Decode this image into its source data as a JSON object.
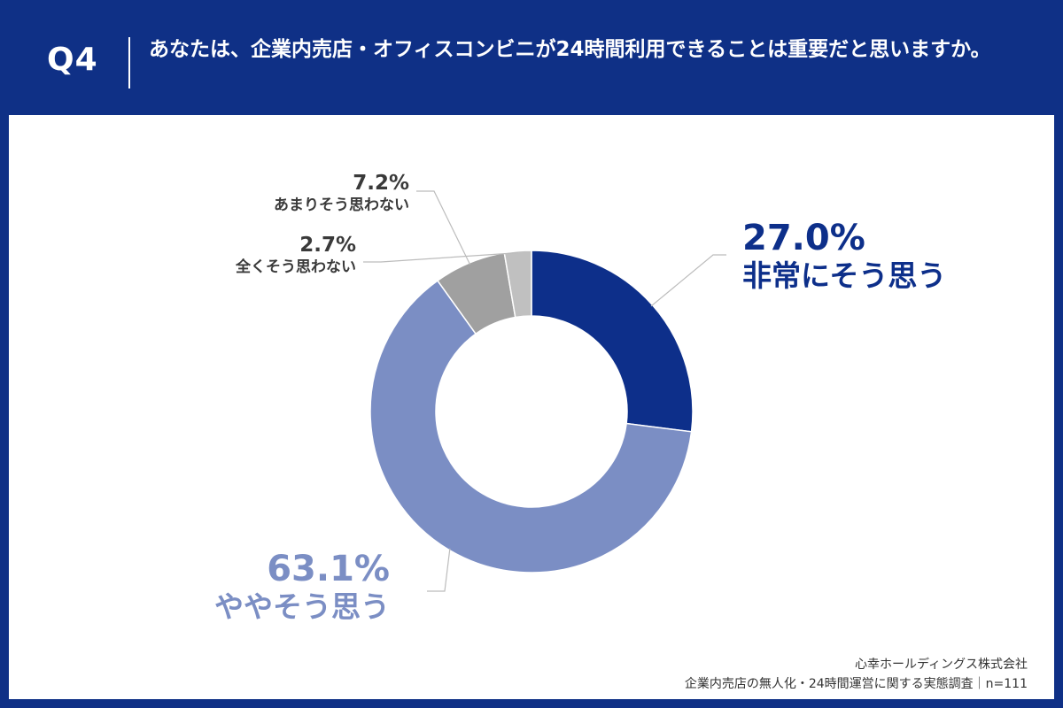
{
  "header": {
    "question_number": "Q4",
    "question_text": "あなたは、企業内売店・オフィスコンビニが24時間利用できることは重要だと思いますか。"
  },
  "chart_data": {
    "type": "pie",
    "style": "donut",
    "start_angle_deg": 0,
    "direction": "clockwise",
    "slices": [
      {
        "label": "非常にそう思う",
        "value": 27.0,
        "value_label": "27.0%",
        "color": "#0d2f8a"
      },
      {
        "label": "ややそう思う",
        "value": 63.1,
        "value_label": "63.1%",
        "color": "#7b8ec4"
      },
      {
        "label": "あまりそう思わない",
        "value": 7.2,
        "value_label": "7.2%",
        "color": "#a0a0a0"
      },
      {
        "label": "全くそう思わない",
        "value": 2.7,
        "value_label": "2.7%",
        "color": "#c0c0c0"
      }
    ]
  },
  "footer": {
    "company": "心幸ホールディングス株式会社",
    "survey": "企業内売店の無人化・24時間運営に関する実態調査｜n=111"
  }
}
